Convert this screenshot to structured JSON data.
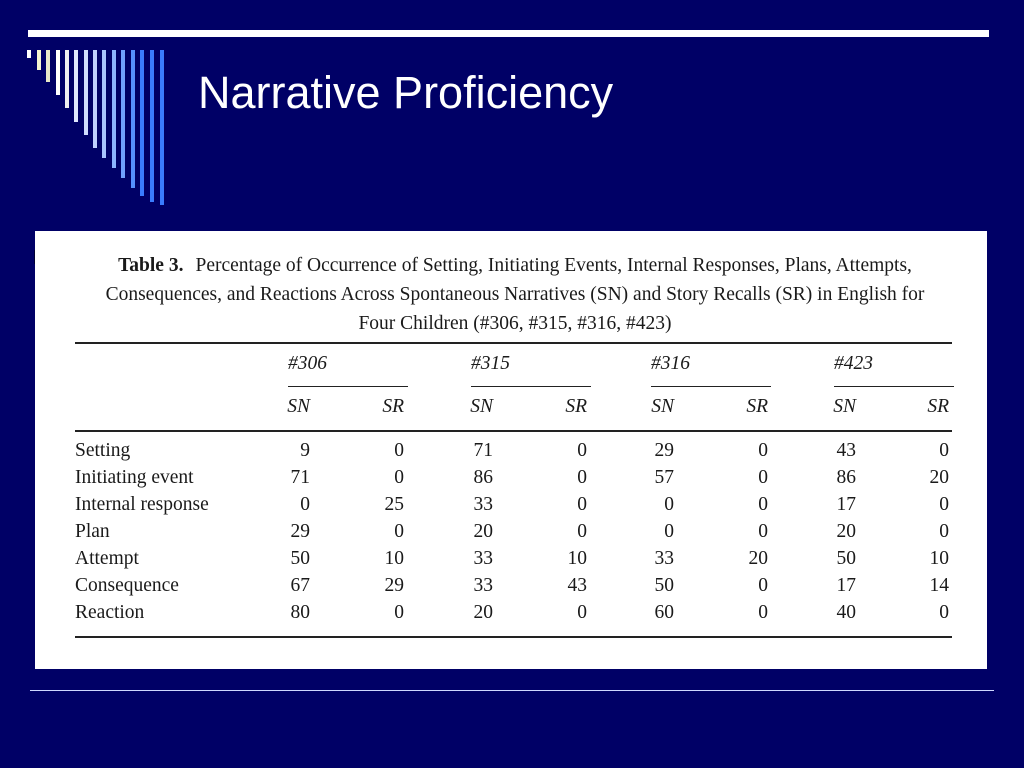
{
  "slide": {
    "title": "Narrative Proficiency"
  },
  "colors": {
    "background": "#000066",
    "bars": [
      "#ffffff",
      "#f5f5d0",
      "#e8e8c8",
      "#ffffff",
      "#f0f0f0",
      "#e0e8ff",
      "#d0dcff",
      "#c0d0ff",
      "#a8c4ff",
      "#8cb4ff",
      "#70a0ff",
      "#5590ff",
      "#3a7cff"
    ]
  },
  "table": {
    "label": "Table 3.",
    "caption": "Percentage of Occurrence of Setting, Initiating Events, Internal Responses, Plans, Attempts, Consequences, and Reactions Across Spontaneous Narratives (SN) and Story Recalls (SR) in English for Four Children (#306, #315, #316, #423)",
    "groups": [
      "#306",
      "#315",
      "#316",
      "#423"
    ],
    "subheaders": [
      "SN",
      "SR",
      "SN",
      "SR",
      "SN",
      "SR",
      "SN",
      "SR"
    ],
    "rows": [
      {
        "label": "Setting",
        "values": [
          "9",
          "0",
          "71",
          "0",
          "29",
          "0",
          "43",
          "0"
        ]
      },
      {
        "label": "Initiating event",
        "values": [
          "71",
          "0",
          "86",
          "0",
          "57",
          "0",
          "86",
          "20"
        ]
      },
      {
        "label": "Internal response",
        "values": [
          "0",
          "25",
          "33",
          "0",
          "0",
          "0",
          "17",
          "0"
        ]
      },
      {
        "label": "Plan",
        "values": [
          "29",
          "0",
          "20",
          "0",
          "0",
          "0",
          "20",
          "0"
        ]
      },
      {
        "label": "Attempt",
        "values": [
          "50",
          "10",
          "33",
          "10",
          "33",
          "20",
          "50",
          "10"
        ]
      },
      {
        "label": "Consequence",
        "values": [
          "67",
          "29",
          "33",
          "43",
          "50",
          "0",
          "17",
          "14"
        ]
      },
      {
        "label": "Reaction",
        "values": [
          "80",
          "0",
          "20",
          "0",
          "60",
          "0",
          "40",
          "0"
        ]
      }
    ]
  }
}
